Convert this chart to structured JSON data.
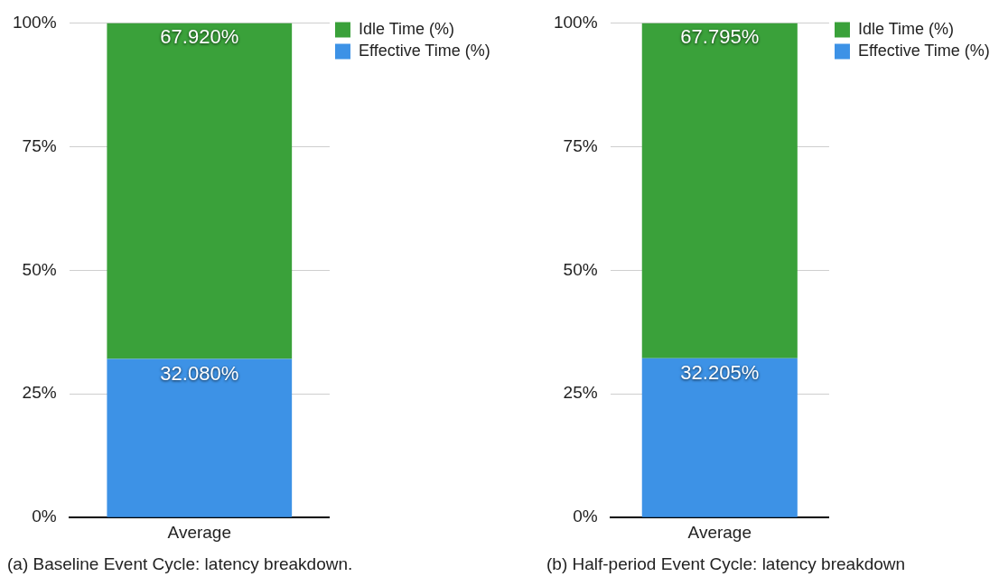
{
  "chart_data": [
    {
      "type": "bar",
      "stacked": true,
      "categories": [
        "Average"
      ],
      "series": [
        {
          "name": "Effective Time (%)",
          "color": "#3d92e6",
          "values": [
            32.08
          ],
          "value_labels": [
            "32.080%"
          ]
        },
        {
          "name": "Idle Time (%)",
          "color": "#3aa13a",
          "values": [
            67.92
          ],
          "value_labels": [
            "67.920%"
          ]
        }
      ],
      "ylim": [
        0,
        100
      ],
      "yticks": [
        {
          "value": 0,
          "label": "0%"
        },
        {
          "value": 25,
          "label": "25%"
        },
        {
          "value": 50,
          "label": "50%"
        },
        {
          "value": 75,
          "label": "75%"
        },
        {
          "value": 100,
          "label": "100%"
        }
      ],
      "grid": "y",
      "legend": "right",
      "annotations": [
        "(a) Baseline Event Cycle: latency breakdown."
      ]
    },
    {
      "type": "bar",
      "stacked": true,
      "categories": [
        "Average"
      ],
      "series": [
        {
          "name": "Effective Time (%)",
          "color": "#3d92e6",
          "values": [
            32.205
          ],
          "value_labels": [
            "32.205%"
          ]
        },
        {
          "name": "Idle Time (%)",
          "color": "#3aa13a",
          "values": [
            67.795
          ],
          "value_labels": [
            "67.795%"
          ]
        }
      ],
      "ylim": [
        0,
        100
      ],
      "yticks": [
        {
          "value": 0,
          "label": "0%"
        },
        {
          "value": 25,
          "label": "25%"
        },
        {
          "value": 50,
          "label": "50%"
        },
        {
          "value": 75,
          "label": "75%"
        },
        {
          "value": 100,
          "label": "100%"
        }
      ],
      "grid": "y",
      "legend": "right",
      "annotations": [
        "(b) Half-period Event Cycle: latency breakdown"
      ]
    }
  ]
}
